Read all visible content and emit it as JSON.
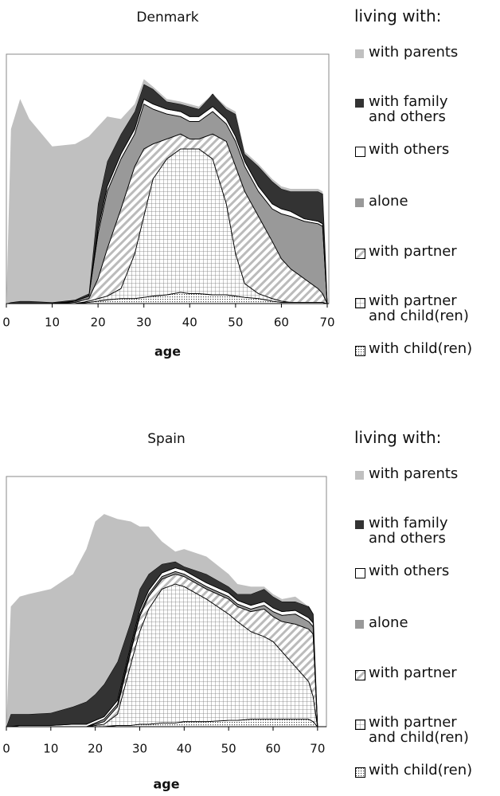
{
  "chart_data": [
    {
      "type": "area",
      "title": "Denmark",
      "xlabel": "age",
      "legend_title": "living with:",
      "x": [
        0,
        1,
        3,
        5,
        10,
        15,
        18,
        20,
        22,
        25,
        28,
        30,
        32,
        35,
        38,
        40,
        42,
        45,
        48,
        50,
        52,
        55,
        58,
        60,
        62,
        65,
        68,
        69,
        70
      ],
      "xlim": [
        0,
        70
      ],
      "ylim": [
        0,
        100
      ],
      "xticks": [
        0,
        10,
        20,
        30,
        40,
        50,
        60,
        70
      ],
      "series": [
        {
          "name": "with parents",
          "color": "#c0c0c0",
          "values": [
            0,
            69.5,
            81,
            73,
            62.5,
            62.5,
            63,
            31,
            18,
            6,
            3,
            2,
            1,
            1,
            1,
            1,
            1,
            0,
            1,
            1,
            1,
            1,
            1,
            1,
            1,
            1,
            1,
            1,
            0
          ]
        },
        {
          "name": "with family\nand others",
          "color": "#333333",
          "values": [
            0,
            0.5,
            1,
            1,
            0.5,
            0.5,
            1,
            10,
            10,
            8,
            7,
            6,
            6,
            3,
            3,
            4,
            3,
            5,
            4,
            9,
            3,
            8,
            9,
            8,
            8,
            11,
            12,
            12,
            0
          ]
        },
        {
          "name": "with others",
          "color": "#ffffff",
          "values": [
            0,
            0,
            0,
            0,
            0,
            0,
            0,
            2,
            2,
            2,
            2,
            2,
            2,
            2,
            2,
            2,
            2,
            2,
            2,
            2,
            2,
            2,
            2,
            2,
            2,
            1,
            1,
            1,
            0
          ]
        },
        {
          "name": "alone",
          "color": "#999999",
          "values": [
            0,
            0,
            0,
            0,
            0,
            0.5,
            1,
            18,
            23,
            20,
            13,
            18,
            14,
            10,
            7,
            7,
            7,
            9,
            7,
            10,
            10,
            10,
            13,
            18,
            21,
            23,
            26,
            27,
            0
          ]
        },
        {
          "name": "with partner",
          "color": "#bbbbbb",
          "pattern": "diagonal",
          "values": [
            0,
            0,
            0,
            0,
            0,
            0.5,
            1,
            8,
            19,
            32,
            35,
            27,
            14,
            8,
            6,
            4,
            4,
            10,
            25,
            35,
            37,
            31,
            23,
            17,
            13.5,
            9.5,
            5.5,
            3.5,
            0
          ]
        },
        {
          "name": "with partner\nand child(ren)",
          "color": "#777777",
          "pattern": "grid",
          "values": [
            0,
            0,
            0,
            0,
            0,
            0,
            0.5,
            1,
            1.5,
            4,
            18,
            32.5,
            47,
            54.5,
            57.5,
            58,
            58,
            54.5,
            36.5,
            17,
            5.5,
            2,
            1,
            0.5,
            0,
            0,
            0,
            0,
            0
          ]
        },
        {
          "name": "with child(ren)",
          "color": "#444444",
          "pattern": "dots",
          "values": [
            0,
            0,
            0,
            0,
            0,
            0,
            0.5,
            1,
            1.5,
            2,
            2,
            2.5,
            3,
            3.5,
            4.5,
            4,
            4,
            3.5,
            3.5,
            3,
            2.5,
            2,
            1,
            0.5,
            0.5,
            0.5,
            0.5,
            0.5,
            0
          ]
        }
      ]
    },
    {
      "type": "area",
      "title": "Spain",
      "xlabel": "age",
      "legend_title": "living with:",
      "x": [
        0,
        1,
        3,
        5,
        10,
        15,
        18,
        20,
        22,
        25,
        28,
        30,
        32,
        35,
        38,
        40,
        45,
        50,
        52,
        55,
        58,
        60,
        62,
        65,
        68,
        69,
        70
      ],
      "xlim": [
        0,
        72
      ],
      "ylim": [
        0,
        100
      ],
      "xticks": [
        0,
        10,
        20,
        30,
        40,
        50,
        60,
        70
      ],
      "series": [
        {
          "name": "with parents",
          "color": "#c0c0c0",
          "values": [
            0,
            43,
            47,
            48,
            49.5,
            53,
            61,
            69,
            68,
            57,
            40,
            25,
            19,
            9,
            4,
            7,
            7,
            5,
            4,
            3,
            1,
            1,
            1,
            2,
            0,
            0,
            0
          ]
        },
        {
          "name": "with family\nand others",
          "color": "#333333",
          "values": [
            0,
            5,
            4.5,
            4.5,
            5,
            7,
            9,
            10.5,
            13,
            15.5,
            9.5,
            8.5,
            6.5,
            3.5,
            2.5,
            1.5,
            3.5,
            2.5,
            2.5,
            4.5,
            5,
            4.5,
            4,
            3.5,
            4.5,
            3.5,
            0
          ]
        },
        {
          "name": "with others",
          "color": "#ffffff",
          "values": [
            0,
            0,
            0.5,
            0.5,
            0.5,
            1,
            1,
            1,
            1,
            1.5,
            1.5,
            1.5,
            1.5,
            1.5,
            1.5,
            1.5,
            1.5,
            1.5,
            1.5,
            1.5,
            1.5,
            1.5,
            1.5,
            1.5,
            1.5,
            1.5,
            0
          ]
        },
        {
          "name": "alone",
          "color": "#999999",
          "values": [
            0,
            0,
            0,
            0,
            0,
            0,
            0,
            0.5,
            1,
            1,
            1,
            1,
            1,
            1,
            1,
            1,
            1,
            1,
            1,
            1,
            1.5,
            2,
            2.5,
            4,
            3,
            3,
            0
          ]
        },
        {
          "name": "with partner",
          "color": "#bbbbbb",
          "pattern": "diagonal",
          "values": [
            0,
            0,
            0,
            0,
            0,
            0,
            0,
            0.5,
            1,
            3,
            5,
            6,
            5,
            4,
            4,
            4,
            4,
            6,
            6,
            8,
            11,
            10,
            12,
            17,
            21,
            25,
            0
          ]
        },
        {
          "name": "with partner\nand child(ren)",
          "color": "#777777",
          "pattern": "grid",
          "values": [
            0,
            0,
            0,
            0,
            0,
            0,
            0,
            0.5,
            1,
            4.5,
            24.5,
            37,
            46,
            53.5,
            55.5,
            54,
            49,
            42.5,
            39.5,
            35,
            33,
            31,
            27,
            21,
            15,
            10,
            0
          ]
        },
        {
          "name": "with child(ren)",
          "color": "#444444",
          "pattern": "dots",
          "values": [
            0,
            0,
            0,
            0,
            0,
            0,
            0,
            0,
            0,
            0.5,
            0.5,
            1,
            1,
            1.5,
            1.5,
            2,
            2,
            2.5,
            2.5,
            3,
            3,
            3,
            3,
            3,
            3,
            2,
            0
          ]
        }
      ]
    }
  ]
}
